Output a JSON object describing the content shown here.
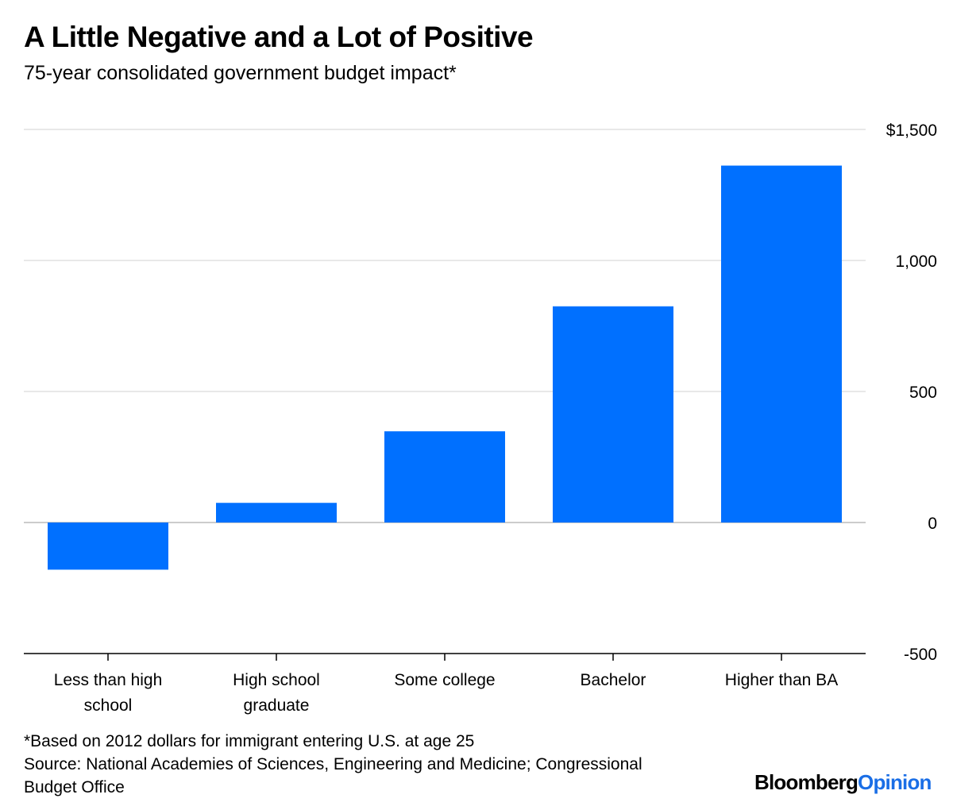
{
  "header": {
    "title": "A Little Negative and a Lot of Positive",
    "subtitle": "75-year consolidated government budget impact*"
  },
  "chart_data": {
    "type": "bar",
    "categories": [
      [
        "Less than high",
        "school"
      ],
      [
        "High school",
        "graduate"
      ],
      [
        "Some college"
      ],
      [
        "Bachelor"
      ],
      [
        "Higher than BA"
      ]
    ],
    "values": [
      -180,
      75,
      348,
      825,
      1362
    ],
    "ylim": [
      -500,
      1500
    ],
    "yticks": [
      -500,
      0,
      500,
      1000,
      1500
    ],
    "ytick_labels": [
      "-500",
      "0",
      "500",
      "1,000",
      "$1,500"
    ],
    "y_axis_position": "right",
    "grid": true,
    "bar_color": "#0070ff",
    "grid_color": "#e8e8e8"
  },
  "footer": {
    "note": "*Based on 2012 dollars for immigrant entering U.S. at age 25",
    "source_line1": "Source: National Academies of Sciences, Engineering and Medicine; Congressional",
    "source_line2": "Budget Office",
    "logo_brand": "Bloomberg",
    "logo_opinion": "Opinion"
  }
}
